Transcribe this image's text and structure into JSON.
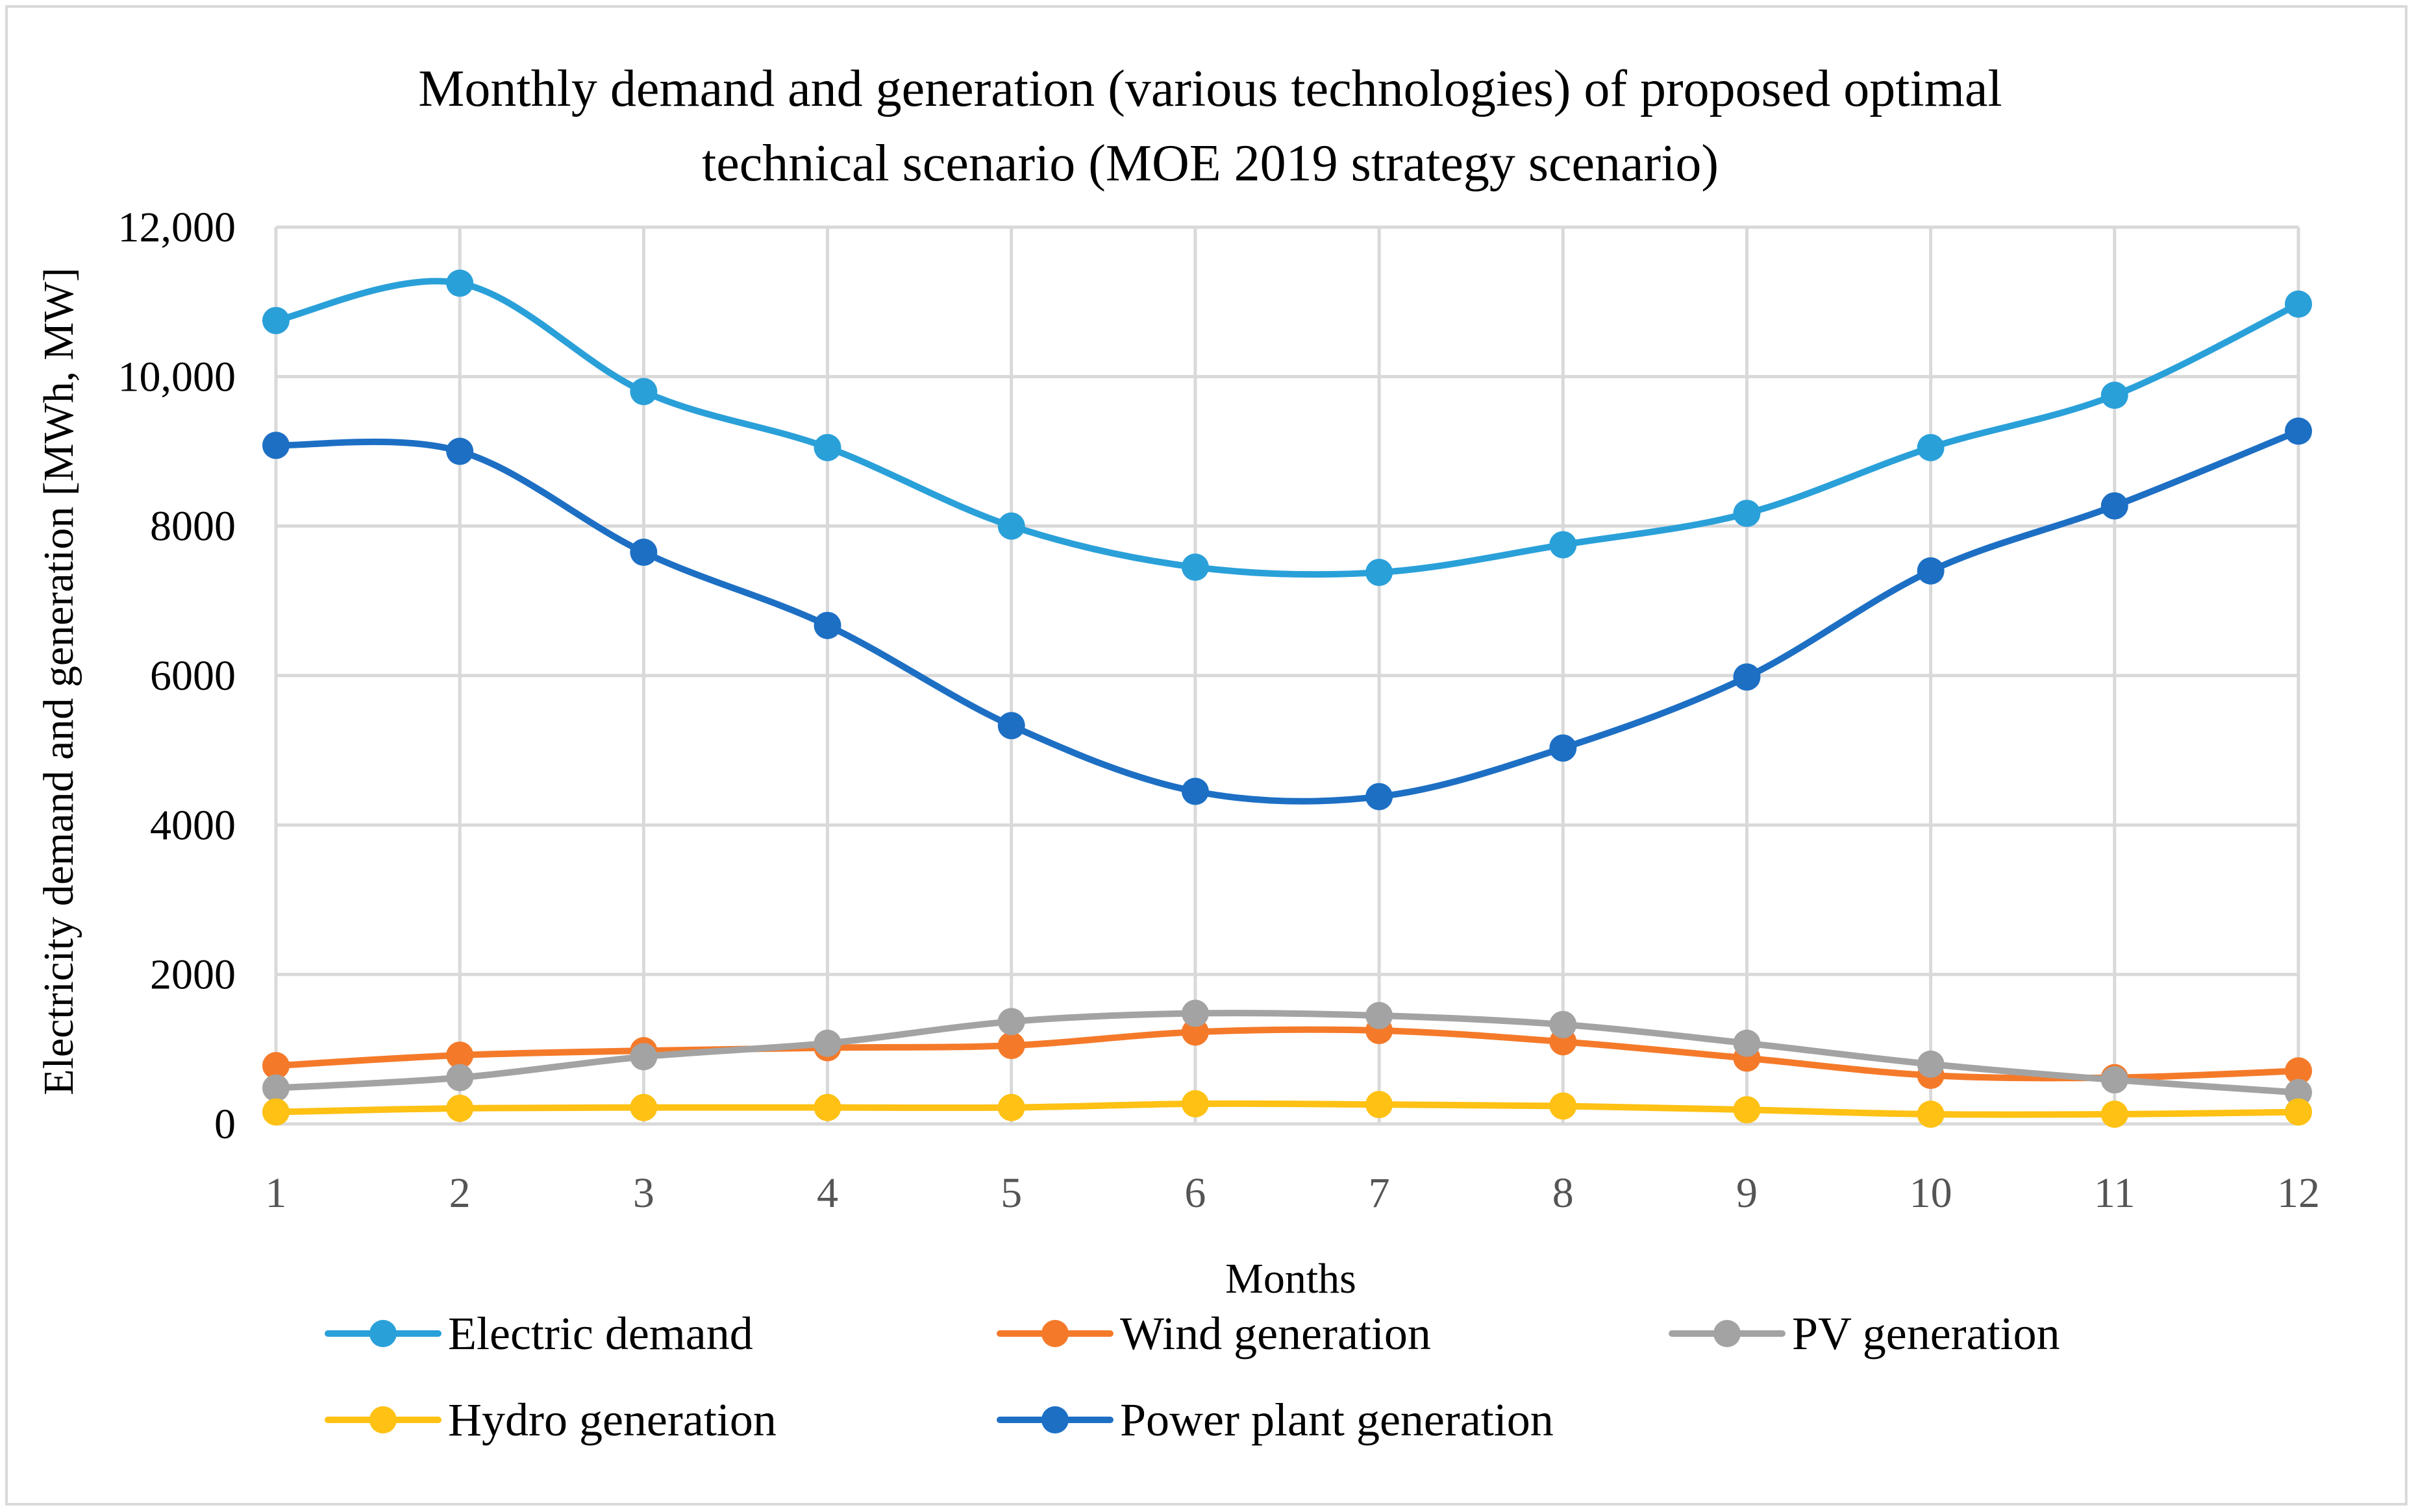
{
  "chart_data": {
    "type": "line",
    "title_lines": [
      "Monthly demand and generation (various technologies) of proposed optimal",
      "technical scenario (MOE 2019 strategy scenario)"
    ],
    "xlabel": "Months",
    "ylabel": "Electricity demand and generation [MWh, MW]",
    "categories": [
      1,
      2,
      3,
      4,
      5,
      6,
      7,
      8,
      9,
      10,
      11,
      12
    ],
    "x_tick_labels": [
      "1",
      "2",
      "3",
      "4",
      "5",
      "6",
      "7",
      "8",
      "9",
      "10",
      "11",
      "12"
    ],
    "ylim": [
      0,
      12000
    ],
    "y_ticks": [
      0,
      2000,
      4000,
      6000,
      8000,
      10000,
      12000
    ],
    "y_tick_labels": [
      "0",
      "2000",
      "4000",
      "6000",
      "8000",
      "10,000",
      "12,000"
    ],
    "grid": true,
    "legend_position": "bottom",
    "series": [
      {
        "name": "Electric demand",
        "color": "#2aa0d9",
        "values": [
          10750,
          11250,
          9800,
          9050,
          8000,
          7450,
          7380,
          7750,
          8170,
          9050,
          9750,
          10970
        ]
      },
      {
        "name": "Wind generation",
        "color": "#f47a2a",
        "values": [
          780,
          920,
          980,
          1020,
          1050,
          1230,
          1250,
          1100,
          880,
          650,
          620,
          710
        ]
      },
      {
        "name": "PV generation",
        "color": "#a3a3a3",
        "values": [
          480,
          620,
          900,
          1080,
          1370,
          1480,
          1450,
          1330,
          1080,
          800,
          590,
          420
        ]
      },
      {
        "name": "Hydro generation",
        "color": "#fec114",
        "values": [
          160,
          210,
          220,
          220,
          220,
          270,
          260,
          240,
          190,
          130,
          130,
          160
        ]
      },
      {
        "name": "Power plant generation",
        "color": "#1d6fc4",
        "values": [
          9080,
          9000,
          7650,
          6670,
          5330,
          4450,
          4380,
          5030,
          5980,
          7400,
          8270,
          9270
        ]
      }
    ],
    "legend_order": [
      0,
      1,
      2,
      3,
      4
    ]
  }
}
